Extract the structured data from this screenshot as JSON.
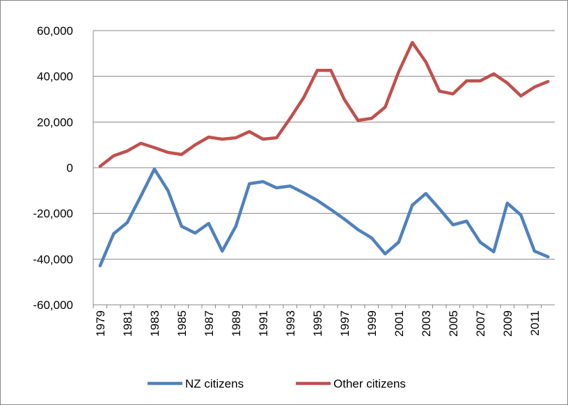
{
  "chart_data": {
    "type": "line",
    "categories": [
      "1979",
      null,
      "1981",
      null,
      "1983",
      null,
      "1985",
      null,
      "1987",
      null,
      "1989",
      null,
      "1991",
      null,
      "1993",
      null,
      "1995",
      null,
      "1997",
      null,
      "1999",
      null,
      "2001",
      null,
      "2003",
      null,
      "2005",
      null,
      "2007",
      null,
      "2009",
      null,
      "2011",
      null
    ],
    "series": [
      {
        "name": "NZ citizens",
        "color": "#4f81bd",
        "values": [
          -42900,
          -28900,
          -24000,
          -12500,
          -600,
          -10000,
          -25600,
          -28600,
          -24400,
          -36500,
          -25600,
          -7000,
          -6100,
          -8800,
          -8000,
          -11000,
          -14300,
          -18300,
          -22500,
          -27100,
          -30700,
          -37700,
          -32600,
          -16400,
          -11300,
          -18000,
          -25000,
          -23400,
          -32600,
          -36800,
          -15500,
          -20700,
          -36500,
          -39000
        ]
      },
      {
        "name": "Other citizens",
        "color": "#c0504d",
        "values": [
          600,
          5200,
          7300,
          10700,
          8800,
          6700,
          5800,
          10000,
          13400,
          12500,
          13100,
          15800,
          12500,
          13100,
          21600,
          30700,
          42600,
          42600,
          29800,
          20700,
          21600,
          26500,
          42000,
          54800,
          46300,
          33500,
          32300,
          38000,
          38000,
          41100,
          37100,
          31400,
          35300,
          37700
        ]
      }
    ],
    "ylim": [
      -60000,
      60000
    ],
    "yticks": [
      {
        "value": -60000,
        "label": "-60,000"
      },
      {
        "value": -40000,
        "label": "-40,000"
      },
      {
        "value": -20000,
        "label": "-20,000"
      },
      0,
      {
        "value": 20000,
        "label": "20,000"
      },
      {
        "value": 40000,
        "label": "40,000"
      },
      {
        "value": 60000,
        "label": "60,000"
      }
    ],
    "grid": true,
    "legend": "bottom"
  }
}
